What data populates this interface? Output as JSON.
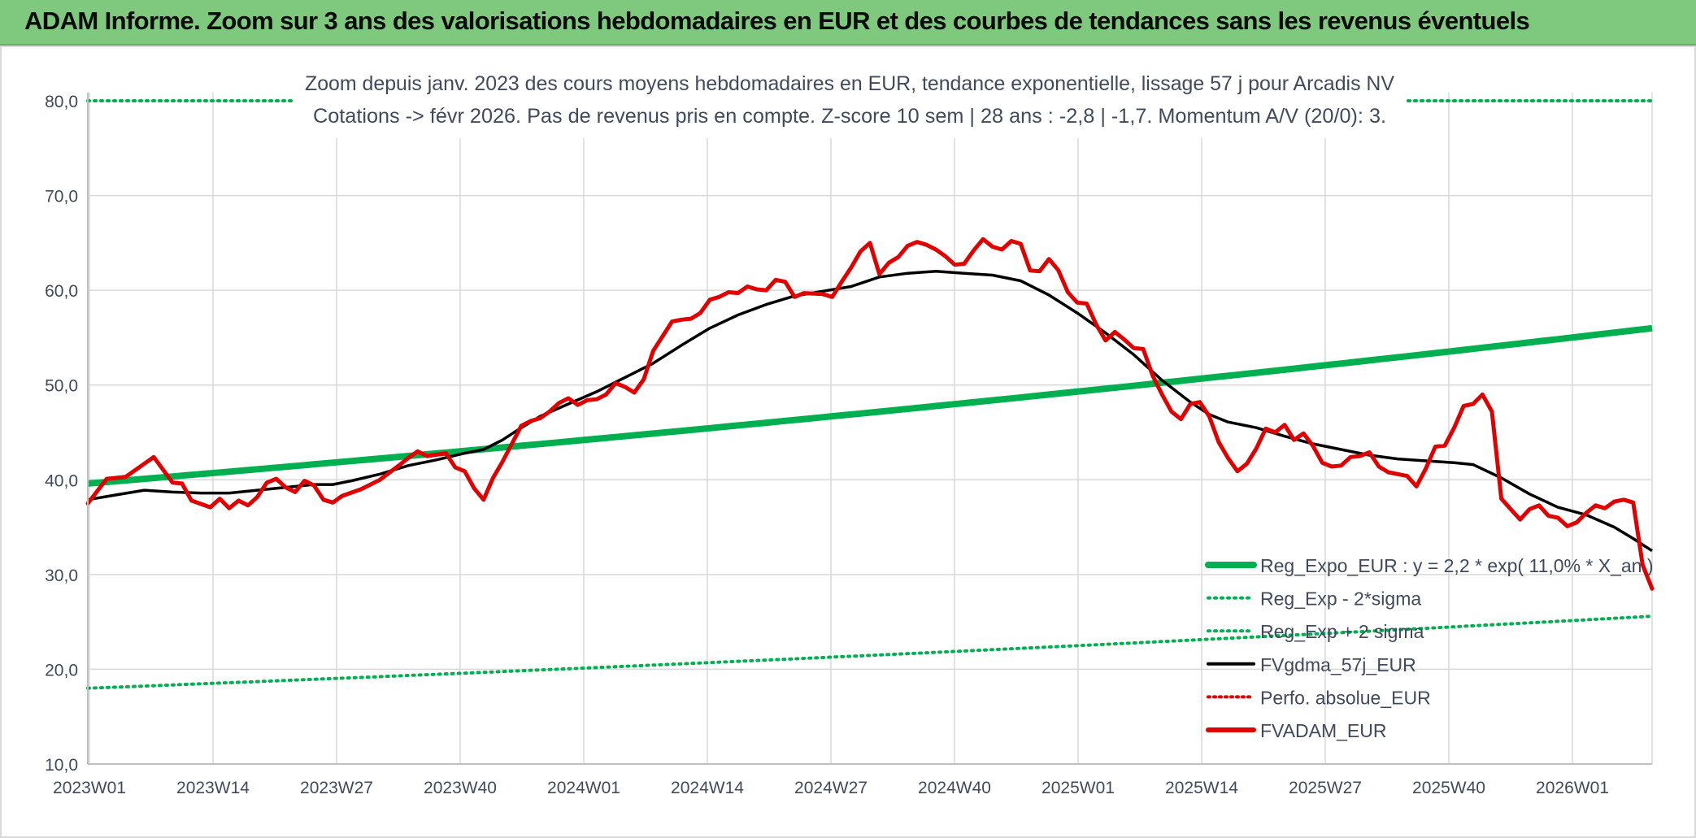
{
  "header": {
    "title": "ADAM Informe. Zoom sur 3 ans des valorisations hebdomadaires en EUR et des courbes de tendances sans les revenus éventuels"
  },
  "chart_data": {
    "type": "line",
    "subtitle_line1": "Zoom depuis janv. 2023 des cours moyens hebdomadaires en EUR, tendance exponentielle, lissage 57 j pour Arcadis NV",
    "subtitle_line2": "Cotations -> févr 2026. Pas de revenus pris en compte. Z-score 10 sem | 28 ans : -2,8 | -1,7. Momentum A/V (20/0): 3.",
    "ylim": [
      10,
      80
    ],
    "yticks": [
      "10,0",
      "20,0",
      "30,0",
      "40,0",
      "50,0",
      "60,0",
      "70,0",
      "80,0"
    ],
    "xticks": [
      "2023W01",
      "2023W14",
      "2023W27",
      "2023W40",
      "2024W01",
      "2024W14",
      "2024W27",
      "2024W40",
      "2025W01",
      "2025W14",
      "2025W27",
      "2025W40",
      "2026W01"
    ],
    "x_week_count": 166,
    "colors": {
      "green": "#00b050",
      "black": "#000000",
      "red": "#e00000",
      "grid": "#d9d9d9",
      "text": "#404a5c"
    },
    "series": [
      {
        "name": "Reg_Expo_EUR : y = 2,2 * exp( 11,0% *  X_an )",
        "style": "solid-thick",
        "start": 39.6,
        "end": 56.0
      },
      {
        "name": "Reg_Exp - 2*sigma",
        "style": "dotted",
        "start": 18.0,
        "end": 25.6
      },
      {
        "name": "Reg_Exp + 2 sigma",
        "style": "dotted",
        "start": 80.0,
        "end": 80.0
      },
      {
        "name": "FVgdma_57j_EUR",
        "style": "solid",
        "points": [
          [
            0,
            37.9
          ],
          [
            3,
            38.4
          ],
          [
            6,
            38.9
          ],
          [
            9,
            38.7
          ],
          [
            12,
            38.6
          ],
          [
            15,
            38.6
          ],
          [
            18,
            38.9
          ],
          [
            21,
            39.2
          ],
          [
            24,
            39.5
          ],
          [
            26,
            39.5
          ],
          [
            28,
            39.9
          ],
          [
            31,
            40.6
          ],
          [
            34,
            41.5
          ],
          [
            37,
            42.1
          ],
          [
            40,
            42.8
          ],
          [
            42,
            43.2
          ],
          [
            44,
            44.2
          ],
          [
            46,
            45.5
          ],
          [
            48,
            46.7
          ],
          [
            51,
            48.0
          ],
          [
            54,
            49.3
          ],
          [
            57,
            50.8
          ],
          [
            60,
            52.3
          ],
          [
            63,
            54.2
          ],
          [
            66,
            56.0
          ],
          [
            69,
            57.4
          ],
          [
            72,
            58.5
          ],
          [
            75,
            59.4
          ],
          [
            78,
            59.9
          ],
          [
            81,
            60.4
          ],
          [
            84,
            61.4
          ],
          [
            87,
            61.8
          ],
          [
            90,
            62.0
          ],
          [
            93,
            61.8
          ],
          [
            96,
            61.6
          ],
          [
            99,
            61.0
          ],
          [
            102,
            59.5
          ],
          [
            105,
            57.6
          ],
          [
            108,
            55.5
          ],
          [
            111,
            53.2
          ],
          [
            114,
            50.5
          ],
          [
            117,
            48.2
          ],
          [
            119,
            46.9
          ],
          [
            121,
            46.1
          ],
          [
            124,
            45.5
          ],
          [
            127,
            44.6
          ],
          [
            130,
            43.8
          ],
          [
            133,
            43.2
          ],
          [
            136,
            42.6
          ],
          [
            139,
            42.2
          ],
          [
            142,
            42.0
          ],
          [
            145,
            41.8
          ],
          [
            147,
            41.6
          ],
          [
            150,
            40.2
          ],
          [
            153,
            38.5
          ],
          [
            156,
            37.1
          ],
          [
            159,
            36.3
          ],
          [
            162,
            35.0
          ],
          [
            164,
            33.8
          ],
          [
            166,
            32.5
          ]
        ]
      },
      {
        "name": "Perfo. absolue_EUR",
        "style": "dotted",
        "points": []
      },
      {
        "name": "FVADAM_EUR",
        "style": "solid-red",
        "points": [
          [
            0,
            37.5
          ],
          [
            2,
            40.1
          ],
          [
            4,
            40.3
          ],
          [
            6,
            41.7
          ],
          [
            7,
            42.4
          ],
          [
            9,
            39.7
          ],
          [
            10,
            39.6
          ],
          [
            11,
            37.8
          ],
          [
            13,
            37.1
          ],
          [
            14,
            38.0
          ],
          [
            15,
            37.0
          ],
          [
            16,
            37.8
          ],
          [
            17,
            37.3
          ],
          [
            18,
            38.2
          ],
          [
            19,
            39.7
          ],
          [
            20,
            40.1
          ],
          [
            21,
            39.2
          ],
          [
            22,
            38.7
          ],
          [
            23,
            39.9
          ],
          [
            24,
            39.4
          ],
          [
            25,
            37.9
          ],
          [
            26,
            37.6
          ],
          [
            27,
            38.3
          ],
          [
            29,
            39.0
          ],
          [
            31,
            40.0
          ],
          [
            33,
            41.5
          ],
          [
            34,
            42.3
          ],
          [
            35,
            43.0
          ],
          [
            36,
            42.5
          ],
          [
            38,
            42.8
          ],
          [
            39,
            41.3
          ],
          [
            40,
            40.9
          ],
          [
            41,
            39.1
          ],
          [
            42,
            37.9
          ],
          [
            43,
            40.2
          ],
          [
            44,
            41.9
          ],
          [
            45,
            43.8
          ],
          [
            46,
            45.7
          ],
          [
            47,
            46.2
          ],
          [
            48,
            46.5
          ],
          [
            49,
            47.2
          ],
          [
            50,
            48.1
          ],
          [
            51,
            48.6
          ],
          [
            52,
            47.9
          ],
          [
            53,
            48.4
          ],
          [
            54,
            48.5
          ],
          [
            55,
            49.0
          ],
          [
            56,
            50.2
          ],
          [
            57,
            49.8
          ],
          [
            58,
            49.2
          ],
          [
            59,
            50.6
          ],
          [
            60,
            53.6
          ],
          [
            62,
            56.7
          ],
          [
            63,
            56.9
          ],
          [
            64,
            57.0
          ],
          [
            65,
            57.6
          ],
          [
            66,
            59.0
          ],
          [
            67,
            59.3
          ],
          [
            68,
            59.8
          ],
          [
            69,
            59.7
          ],
          [
            70,
            60.4
          ],
          [
            71,
            60.1
          ],
          [
            72,
            60.0
          ],
          [
            73,
            61.1
          ],
          [
            74,
            60.9
          ],
          [
            75,
            59.3
          ],
          [
            76,
            59.7
          ],
          [
            78,
            59.6
          ],
          [
            79,
            59.3
          ],
          [
            80,
            60.9
          ],
          [
            81,
            62.4
          ],
          [
            82,
            64.1
          ],
          [
            83,
            65.0
          ],
          [
            84,
            61.7
          ],
          [
            85,
            62.9
          ],
          [
            86,
            63.5
          ],
          [
            87,
            64.7
          ],
          [
            88,
            65.1
          ],
          [
            89,
            64.8
          ],
          [
            90,
            64.3
          ],
          [
            91,
            63.6
          ],
          [
            92,
            62.7
          ],
          [
            93,
            62.8
          ],
          [
            94,
            64.2
          ],
          [
            95,
            65.4
          ],
          [
            96,
            64.6
          ],
          [
            97,
            64.3
          ],
          [
            98,
            65.2
          ],
          [
            99,
            64.9
          ],
          [
            100,
            62.1
          ],
          [
            101,
            62.0
          ],
          [
            102,
            63.3
          ],
          [
            103,
            62.1
          ],
          [
            104,
            59.8
          ],
          [
            105,
            58.7
          ],
          [
            106,
            58.6
          ],
          [
            107,
            56.4
          ],
          [
            108,
            54.7
          ],
          [
            109,
            55.6
          ],
          [
            110,
            54.8
          ],
          [
            111,
            53.9
          ],
          [
            112,
            53.8
          ],
          [
            113,
            51.0
          ],
          [
            114,
            49.0
          ],
          [
            115,
            47.2
          ],
          [
            116,
            46.4
          ],
          [
            117,
            48.0
          ],
          [
            118,
            48.2
          ],
          [
            119,
            46.7
          ],
          [
            120,
            44.0
          ],
          [
            121,
            42.3
          ],
          [
            122,
            40.9
          ],
          [
            123,
            41.7
          ],
          [
            124,
            43.3
          ],
          [
            125,
            45.4
          ],
          [
            126,
            45.0
          ],
          [
            127,
            45.8
          ],
          [
            128,
            44.2
          ],
          [
            129,
            44.9
          ],
          [
            130,
            43.6
          ],
          [
            131,
            41.8
          ],
          [
            132,
            41.4
          ],
          [
            133,
            41.5
          ],
          [
            134,
            42.4
          ],
          [
            135,
            42.5
          ],
          [
            136,
            42.9
          ],
          [
            137,
            41.4
          ],
          [
            138,
            40.8
          ],
          [
            139,
            40.6
          ],
          [
            140,
            40.4
          ],
          [
            141,
            39.3
          ],
          [
            142,
            41.2
          ],
          [
            143,
            43.5
          ],
          [
            144,
            43.6
          ],
          [
            145,
            45.5
          ],
          [
            146,
            47.8
          ],
          [
            147,
            48.0
          ],
          [
            148,
            49.0
          ],
          [
            149,
            47.2
          ],
          [
            150,
            38.0
          ],
          [
            151,
            36.9
          ],
          [
            152,
            35.8
          ],
          [
            153,
            36.9
          ],
          [
            154,
            37.3
          ],
          [
            155,
            36.2
          ],
          [
            156,
            36.0
          ],
          [
            157,
            35.1
          ],
          [
            158,
            35.5
          ],
          [
            159,
            36.5
          ],
          [
            160,
            37.3
          ],
          [
            161,
            37.0
          ],
          [
            162,
            37.7
          ],
          [
            163,
            37.9
          ],
          [
            164,
            37.6
          ],
          [
            165,
            31.0
          ],
          [
            166,
            28.5
          ]
        ]
      }
    ],
    "legend_position": "bottom-right"
  }
}
